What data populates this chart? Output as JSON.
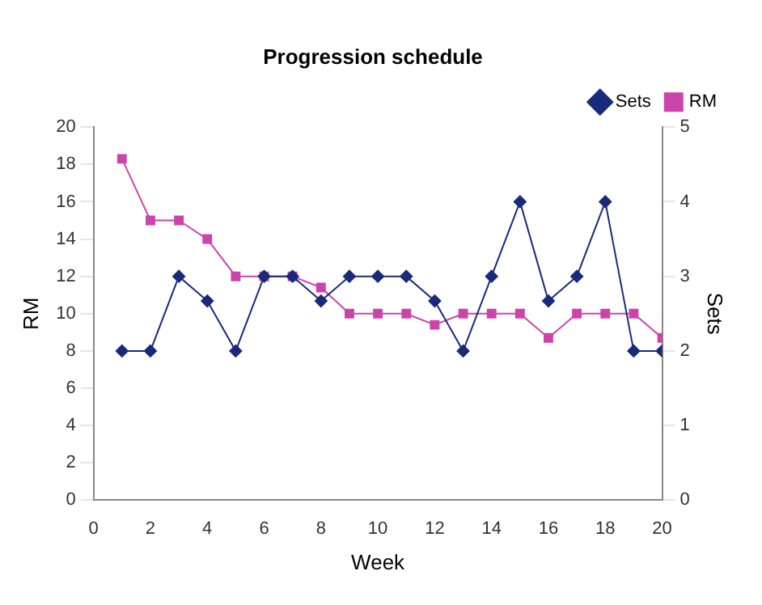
{
  "chart_data": {
    "type": "line",
    "title": "Progression schedule",
    "xlabel": "Week",
    "ylabel": "RM",
    "y2label": "Sets",
    "x": [
      1,
      2,
      3,
      4,
      5,
      6,
      7,
      8,
      9,
      10,
      11,
      12,
      13,
      14,
      15,
      16,
      17,
      18,
      19,
      20
    ],
    "series": [
      {
        "name": "RM",
        "color": "#cc44aa",
        "marker": "square",
        "values": [
          18.3,
          15,
          15,
          14,
          12,
          12,
          12,
          11.4,
          10,
          10,
          10,
          9.4,
          10,
          10,
          10,
          8.7,
          10,
          10,
          10,
          8.7
        ]
      },
      {
        "name": "Sets",
        "color": "#1a2a7a",
        "marker": "diamond",
        "axis": "y2",
        "values": [
          2,
          2,
          3,
          2.67,
          2,
          3,
          3,
          2.67,
          3,
          3,
          3,
          2.67,
          2,
          3,
          4,
          2.67,
          3,
          4,
          2,
          2
        ]
      }
    ],
    "xlim": [
      0,
      20
    ],
    "xticks": [
      0,
      2,
      4,
      6,
      8,
      10,
      12,
      14,
      16,
      18,
      20
    ],
    "ylim": [
      0,
      20
    ],
    "yticks": [
      0,
      2,
      4,
      6,
      8,
      10,
      12,
      14,
      16,
      18,
      20
    ],
    "y2lim": [
      0,
      5
    ],
    "y2ticks": [
      0,
      1,
      2,
      3,
      4,
      5
    ],
    "grid": false,
    "legend": "top right",
    "line_style": "solid"
  }
}
